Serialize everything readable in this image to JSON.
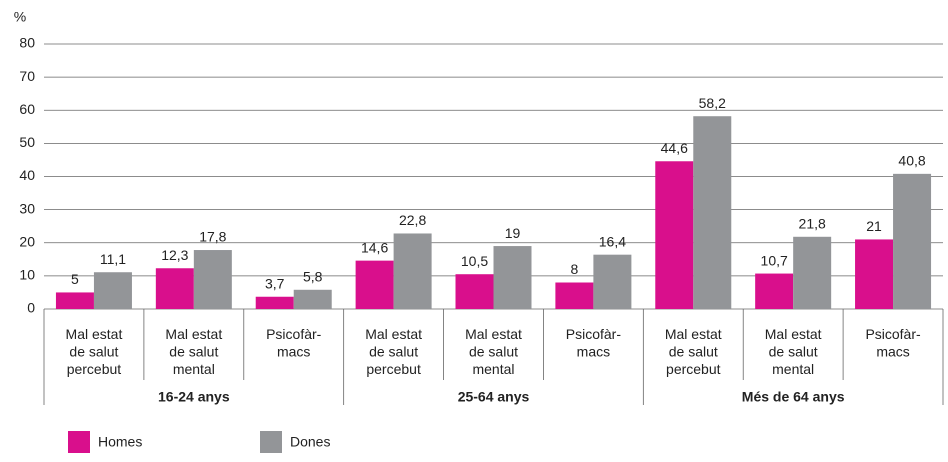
{
  "chart_data": {
    "type": "bar",
    "y_label": "%",
    "categories": [
      "Mal estat\nde salut\npercebut",
      "Mal estat\nde salut\nmental",
      "Psicofàr-\nmacs",
      "Mal estat\nde salut\npercebut",
      "Mal estat\nde salut\nmental",
      "Psicofàr-\nmacs",
      "Mal estat\nde salut\npercebut",
      "Mal estat\nde salut\nmental",
      "Psicofàr-\nmacs"
    ],
    "groups": [
      "16-24 anys",
      "25-64 anys",
      "Més de 64 anys"
    ],
    "series": [
      {
        "name": "Homes",
        "color": "#d90f8c",
        "values": [
          5,
          12.3,
          3.7,
          14.6,
          10.5,
          8,
          44.6,
          10.7,
          21
        ],
        "value_labels": [
          "5",
          "12,3",
          "3,7",
          "14,6",
          "10,5",
          "8",
          "44,6",
          "10,7",
          "21"
        ]
      },
      {
        "name": "Dones",
        "color": "#939598",
        "values": [
          11.1,
          17.8,
          5.8,
          22.8,
          19,
          16.4,
          58.2,
          21.8,
          40.8
        ],
        "value_labels": [
          "11,1",
          "17,8",
          "5,8",
          "22,8",
          "19",
          "16,4",
          "58,2",
          "21,8",
          "40,8"
        ]
      }
    ],
    "ylim": [
      0,
      80
    ],
    "yticks": [
      0,
      10,
      20,
      30,
      40,
      50,
      60,
      70,
      80
    ],
    "grid": true,
    "legend": "bottom"
  }
}
